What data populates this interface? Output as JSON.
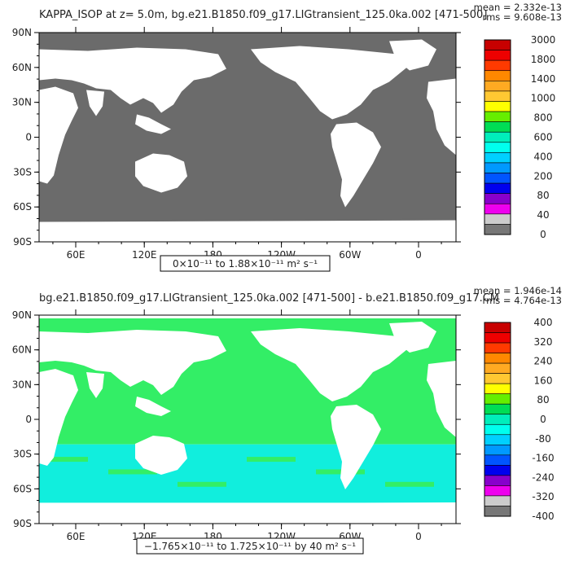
{
  "chart_data": [
    {
      "type": "heatmap",
      "title_left": "KAPPA_ISOP at z=   5.0m, bg.e21.B1850.f09_g17.LIGtransient_125.0ka.002 [471-500]",
      "stat_mean": "mean = 2.332e-13",
      "stat_rms": "rms = 9.608e-13",
      "ytick_labels": [
        "90N",
        "60N",
        "30N",
        "0",
        "30S",
        "60S",
        "90S"
      ],
      "xtick_labels": [
        "60E",
        "120E",
        "180",
        "120W",
        "60W",
        "0"
      ],
      "colorbar_labels": [
        "3000",
        "1800",
        "1400",
        "1000",
        "800",
        "600",
        "400",
        "200",
        "80",
        "40",
        "0"
      ],
      "colorbar_colors": [
        "#c80000",
        "#ee0000",
        "#ff3a00",
        "#ff8800",
        "#ffaa22",
        "#ffc832",
        "#ffff00",
        "#66ee00",
        "#00dd55",
        "#00eebb",
        "#00ffee",
        "#00d0ff",
        "#0099ff",
        "#0055ff",
        "#0000ee",
        "#8800cc",
        "#ee00ee",
        "#cccccc",
        "#777777"
      ],
      "range_note": "0×10⁻¹¹  to  1.88×10⁻¹¹  m² s⁻¹",
      "field_color": "#6b6b6b"
    },
    {
      "type": "heatmap",
      "title_left": "bg.e21.B1850.f09_g17.LIGtransient_125.0ka.002 [471-500] - b.e21.B1850.f09_g17.CM",
      "stat_mean": "mean = 1.946e-14",
      "stat_rms": "rms = 4.764e-13",
      "ytick_labels": [
        "90N",
        "60N",
        "30N",
        "0",
        "30S",
        "60S",
        "90S"
      ],
      "xtick_labels": [
        "60E",
        "120E",
        "180",
        "120W",
        "60W",
        "0"
      ],
      "colorbar_labels": [
        "400",
        "320",
        "240",
        "160",
        "80",
        "0",
        "-80",
        "-160",
        "-240",
        "-320",
        "-400"
      ],
      "colorbar_colors": [
        "#c80000",
        "#ee0000",
        "#ff3a00",
        "#ff8800",
        "#ffaa22",
        "#ffc832",
        "#ffff00",
        "#66ee00",
        "#00dd55",
        "#00eebb",
        "#00ffee",
        "#00d0ff",
        "#0099ff",
        "#0055ff",
        "#0000ee",
        "#8800cc",
        "#ee00ee",
        "#cccccc",
        "#777777"
      ],
      "range_note": "−1.765×10⁻¹¹  to  1.725×10⁻¹¹  by 40  m² s⁻¹",
      "field_color": "#33ee66",
      "field_color_south": "#11eedd"
    }
  ]
}
